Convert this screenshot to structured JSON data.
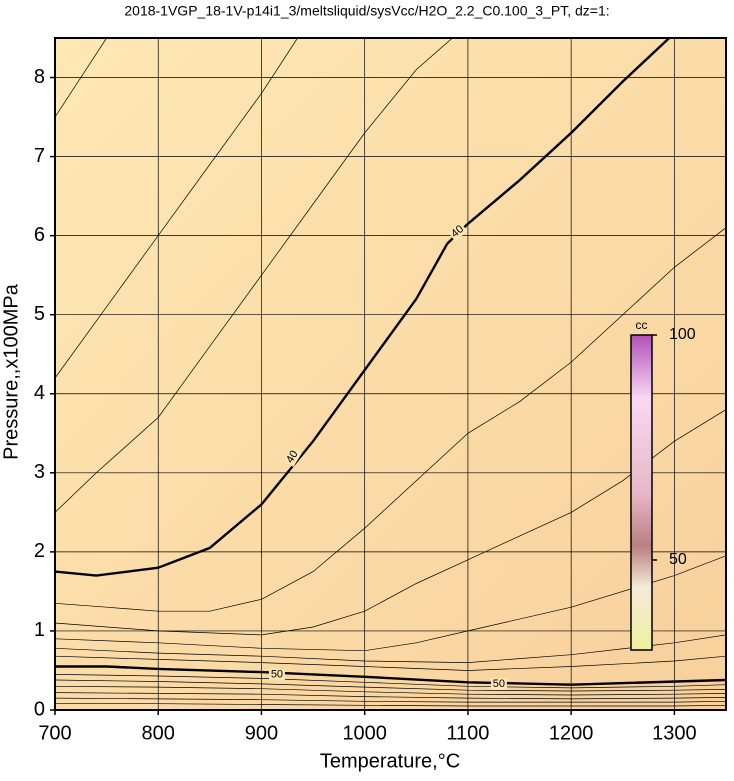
{
  "chart_data": {
    "type": "contour",
    "title": "2018-1VGP_18-1V-p14i1_3/meltsliquid/sysVcc/H2O_2.2_C0.100_3_PT, dz=1:",
    "x_label": "Temperature,°C",
    "y_label": "Pressure,,x100MPa",
    "xlim": [
      700,
      1350
    ],
    "ylim": [
      0,
      8.5
    ],
    "xticks": [
      700,
      800,
      900,
      1000,
      1100,
      1200,
      1300
    ],
    "yticks": [
      0,
      1,
      2,
      3,
      4,
      5,
      6,
      7,
      8
    ],
    "grid": true,
    "contours": [
      {
        "x": [
          700,
          750
        ],
        "y": [
          7.5,
          8.5
        ]
      },
      {
        "x": [
          700,
          750,
          800,
          850,
          900,
          935
        ],
        "y": [
          4.2,
          5.1,
          6.0,
          6.9,
          7.8,
          8.5
        ]
      },
      {
        "x": [
          700,
          740,
          800,
          850,
          900,
          950,
          1000,
          1050,
          1085
        ],
        "y": [
          2.5,
          3.0,
          3.7,
          4.6,
          5.5,
          6.4,
          7.3,
          8.1,
          8.5
        ]
      },
      {
        "level": 40,
        "x": [
          700,
          740,
          800,
          850,
          900,
          950,
          1000,
          1050,
          1080,
          1100,
          1150,
          1200,
          1250,
          1295
        ],
        "y": [
          1.75,
          1.7,
          1.8,
          2.05,
          2.6,
          3.4,
          4.3,
          5.2,
          5.9,
          6.15,
          6.7,
          7.3,
          7.95,
          8.5
        ]
      },
      {
        "x": [
          700,
          750,
          800,
          850,
          900,
          950,
          1000,
          1050,
          1100,
          1150,
          1200,
          1250,
          1300,
          1350
        ],
        "y": [
          1.35,
          1.3,
          1.25,
          1.25,
          1.4,
          1.75,
          2.3,
          2.9,
          3.5,
          3.9,
          4.4,
          5.0,
          5.6,
          6.1
        ]
      },
      {
        "x": [
          700,
          800,
          900,
          950,
          1000,
          1050,
          1100,
          1150,
          1200,
          1250,
          1300,
          1350
        ],
        "y": [
          1.1,
          1.0,
          0.95,
          1.05,
          1.25,
          1.6,
          1.9,
          2.2,
          2.5,
          2.9,
          3.4,
          3.8
        ]
      },
      {
        "x": [
          700,
          800,
          900,
          1000,
          1050,
          1100,
          1200,
          1300,
          1350
        ],
        "y": [
          0.9,
          0.85,
          0.78,
          0.75,
          0.85,
          1.0,
          1.3,
          1.7,
          1.95
        ]
      },
      {
        "x": [
          700,
          800,
          900,
          1000,
          1100,
          1200,
          1300,
          1350
        ],
        "y": [
          0.78,
          0.72,
          0.68,
          0.62,
          0.6,
          0.7,
          0.85,
          0.95
        ]
      },
      {
        "x": [
          700,
          800,
          900,
          1000,
          1100,
          1200,
          1300,
          1350
        ],
        "y": [
          0.68,
          0.64,
          0.6,
          0.55,
          0.5,
          0.55,
          0.62,
          0.68
        ]
      },
      {
        "level": 50,
        "x": [
          700,
          750,
          800,
          900,
          1000,
          1100,
          1200,
          1350
        ],
        "y": [
          0.55,
          0.55,
          0.52,
          0.48,
          0.42,
          0.35,
          0.32,
          0.38
        ]
      },
      {
        "x": [
          700,
          800,
          900,
          1000,
          1100,
          1200,
          1300,
          1350
        ],
        "y": [
          0.45,
          0.43,
          0.4,
          0.35,
          0.3,
          0.28,
          0.3,
          0.32
        ]
      },
      {
        "x": [
          700,
          800,
          900,
          1000,
          1100,
          1200,
          1300,
          1350
        ],
        "y": [
          0.38,
          0.36,
          0.33,
          0.29,
          0.25,
          0.24,
          0.25,
          0.26
        ]
      },
      {
        "x": [
          700,
          800,
          900,
          1000,
          1100,
          1200,
          1300,
          1350
        ],
        "y": [
          0.3,
          0.29,
          0.27,
          0.23,
          0.2,
          0.19,
          0.2,
          0.21
        ]
      },
      {
        "x": [
          700,
          800,
          900,
          1000,
          1100,
          1200,
          1300,
          1350
        ],
        "y": [
          0.22,
          0.21,
          0.2,
          0.17,
          0.15,
          0.14,
          0.15,
          0.16
        ]
      },
      {
        "x": [
          700,
          800,
          900,
          1000,
          1100,
          1200,
          1300,
          1350
        ],
        "y": [
          0.15,
          0.14,
          0.13,
          0.11,
          0.1,
          0.1,
          0.1,
          0.11
        ]
      },
      {
        "x": [
          700,
          800,
          900,
          1000,
          1100,
          1200,
          1300,
          1350
        ],
        "y": [
          0.08,
          0.08,
          0.07,
          0.06,
          0.05,
          0.05,
          0.05,
          0.06
        ]
      }
    ],
    "contour_labels": [
      {
        "value": 40,
        "x": 930,
        "y": 3.2,
        "angle": -58
      },
      {
        "value": 40,
        "x": 1090,
        "y": 6.05,
        "angle": -40
      },
      {
        "value": 50,
        "x": 915,
        "y": 0.45,
        "angle": 0
      },
      {
        "value": 50,
        "x": 1130,
        "y": 0.33,
        "angle": 0
      }
    ],
    "colorbar": {
      "label": "cc",
      "lim": [
        30,
        100
      ],
      "ticks": [
        50,
        100
      ]
    }
  }
}
